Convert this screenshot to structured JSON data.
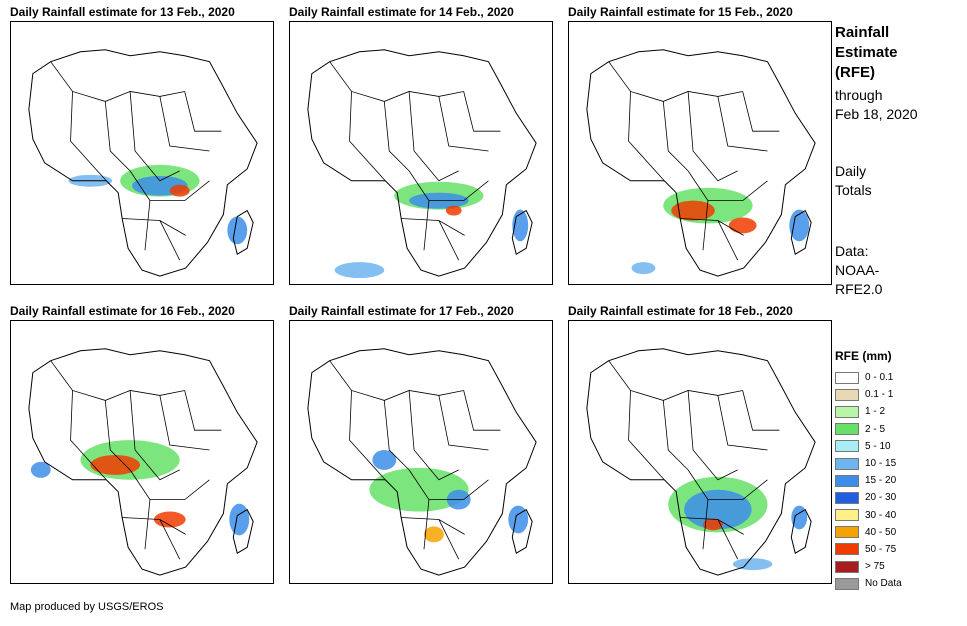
{
  "panels": [
    {
      "title": "Daily Rainfall estimate for 13 Feb., 2020"
    },
    {
      "title": "Daily Rainfall estimate for 14 Feb., 2020"
    },
    {
      "title": "Daily Rainfall estimate for 15 Feb., 2020"
    },
    {
      "title": "Daily Rainfall estimate for 16 Feb., 2020"
    },
    {
      "title": "Daily Rainfall estimate for 17 Feb., 2020"
    },
    {
      "title": "Daily Rainfall estimate for 18 Feb., 2020"
    }
  ],
  "side": {
    "title_lines": [
      "Rainfall",
      "Estimate",
      "(RFE)"
    ],
    "through_lines": [
      "through",
      "Feb 18, 2020"
    ],
    "totals_lines": [
      "Daily",
      "Totals"
    ],
    "data_lines": [
      "Data:",
      "NOAA-",
      "RFE2.0"
    ]
  },
  "legend": {
    "title": "RFE (mm)",
    "items": [
      {
        "label": "0 - 0.1",
        "color": "#ffffff"
      },
      {
        "label": "0.1 - 1",
        "color": "#ead8b4"
      },
      {
        "label": "1 - 2",
        "color": "#b8f5a8"
      },
      {
        "label": "2 - 5",
        "color": "#66e066"
      },
      {
        "label": "5 - 10",
        "color": "#a8eef5"
      },
      {
        "label": "10 - 15",
        "color": "#6eb4f0"
      },
      {
        "label": "15 - 20",
        "color": "#3c8ee8"
      },
      {
        "label": "20 - 30",
        "color": "#1f5fe0"
      },
      {
        "label": "30 - 40",
        "color": "#fff08a"
      },
      {
        "label": "40 - 50",
        "color": "#f5a300"
      },
      {
        "label": "50 - 75",
        "color": "#f03c00"
      },
      {
        "label": "> 75",
        "color": "#a81e1e"
      },
      {
        "label": "No Data",
        "color": "#9a9a9a"
      }
    ]
  },
  "credit": "Map produced by USGS/EROS"
}
